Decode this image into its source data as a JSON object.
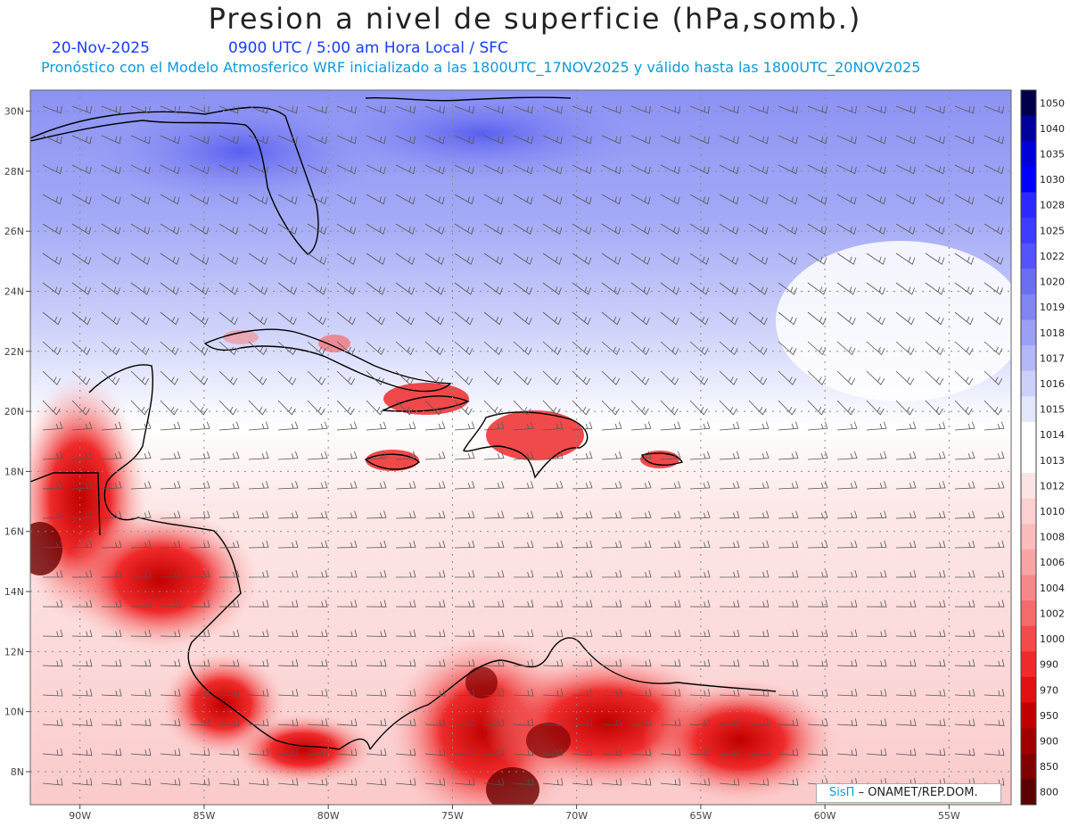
{
  "header": {
    "title": "Presion a nivel de superficie (hPa,somb.)",
    "date": "20-Nov-2025",
    "time": "0900 UTC / 5:00 am Hora Local / SFC",
    "subtitle": "Pronóstico con el Modelo Atmosferico WRF inicializado a las 1800UTC_17NOV2025 y válido hasta las  1800UTC_20NOV2025"
  },
  "map": {
    "lon_range": [
      -92,
      -52.5
    ],
    "lat_range": [
      6.9,
      30.7
    ],
    "lat_ticks": [
      "30N",
      "28N",
      "26N",
      "24N",
      "22N",
      "20N",
      "18N",
      "16N",
      "14N",
      "12N",
      "10N",
      "8N"
    ],
    "lat_values": [
      30,
      28,
      26,
      24,
      22,
      20,
      18,
      16,
      14,
      12,
      10,
      8
    ],
    "lon_ticks": [
      "90W",
      "85W",
      "80W",
      "75W",
      "70W",
      "65W",
      "60W",
      "55W"
    ],
    "lon_values": [
      -90,
      -85,
      -80,
      -75,
      -70,
      -65,
      -60,
      -55
    ],
    "colors": {
      "high": "#6a6ff0",
      "neutral": "#ffffff",
      "low": "#ff2a2a",
      "extreme_low": "#6a0000"
    }
  },
  "colorbar": {
    "labels": [
      "1050",
      "1040",
      "1035",
      "1030",
      "1028",
      "1025",
      "1022",
      "1020",
      "1019",
      "1018",
      "1017",
      "1016",
      "1015",
      "1014",
      "1013",
      "1012",
      "1010",
      "1008",
      "1006",
      "1004",
      "1002",
      "1000",
      "990",
      "970",
      "950",
      "900",
      "850",
      "800"
    ],
    "colors": [
      "#00004a",
      "#00009a",
      "#0000d8",
      "#0000ff",
      "#2a2aff",
      "#3c3cff",
      "#5454ff",
      "#6a6ff0",
      "#8085f2",
      "#9aa0f5",
      "#b4b8f8",
      "#ccd0fa",
      "#e4e6fc",
      "#ffffff",
      "#ffffff",
      "#fde4e4",
      "#fcd0d0",
      "#fbbcbc",
      "#f9a4a4",
      "#f78888",
      "#f56a6a",
      "#f34a4a",
      "#ef2a2a",
      "#e01010",
      "#c00000",
      "#a00000",
      "#800000",
      "#5a0000"
    ]
  },
  "credit": {
    "logo": "SisΠ",
    "text": "– ONAMET/REP.DOM."
  }
}
